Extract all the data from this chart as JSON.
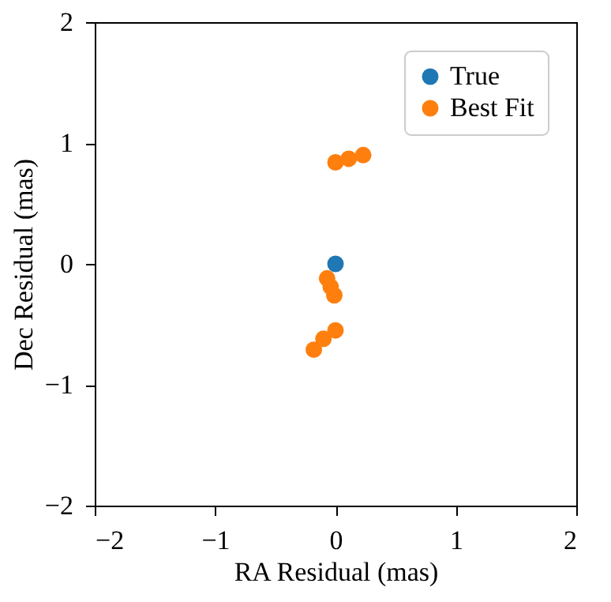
{
  "chart_data": {
    "type": "scatter",
    "xlabel": "RA Residual (mas)",
    "ylabel": "Dec Residual (mas)",
    "xlim": [
      -2,
      2
    ],
    "ylim": [
      -2,
      2
    ],
    "xticks": [
      -2,
      -1,
      0,
      1,
      2
    ],
    "yticks": [
      -2,
      -1,
      0,
      1,
      2
    ],
    "legend": "top right",
    "marker": "circle",
    "grid": false,
    "series": [
      {
        "name": "True",
        "color": "#1f77b4",
        "x": [
          0.0
        ],
        "values": [
          0.0
        ]
      },
      {
        "name": "Best Fit",
        "color": "#ff7f0e",
        "x": [
          0.0,
          0.11,
          0.23,
          -0.07,
          -0.04,
          -0.01,
          0.0,
          -0.1,
          -0.18
        ],
        "values": [
          0.84,
          0.87,
          0.9,
          -0.12,
          -0.19,
          -0.26,
          -0.55,
          -0.62,
          -0.71
        ]
      }
    ]
  }
}
